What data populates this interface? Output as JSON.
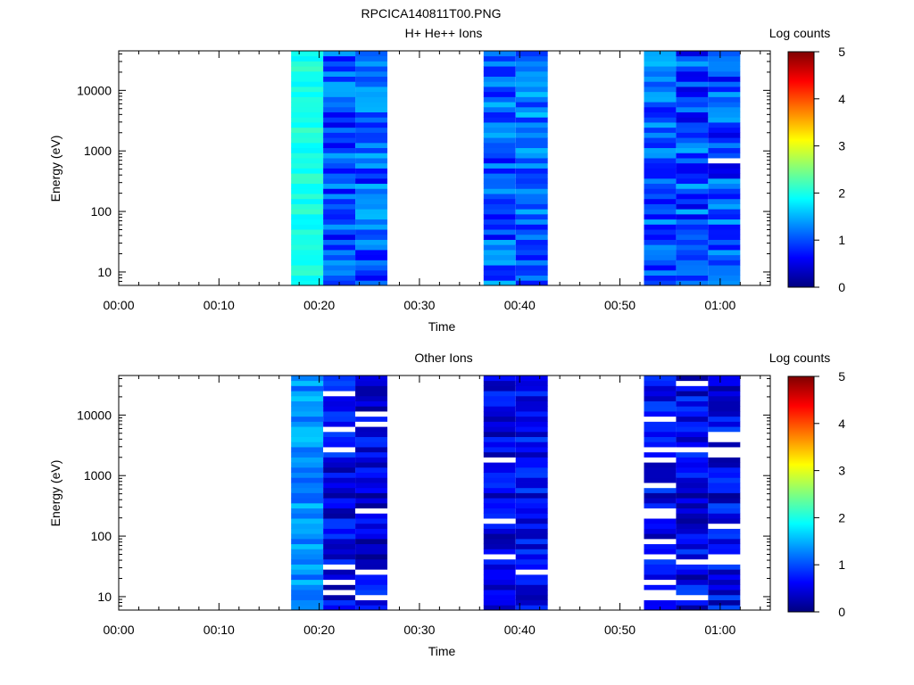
{
  "figure": {
    "title": "RPCICA140811T00.PNG"
  },
  "colorscale": {
    "stops": [
      "#00007f",
      "#0000ff",
      "#007fff",
      "#00ffff",
      "#7fff7f",
      "#ffff00",
      "#ff7f00",
      "#ff0000",
      "#7f0000"
    ],
    "label": "Log counts",
    "min": 0,
    "max": 5,
    "ticks": [
      0,
      1,
      2,
      3,
      4,
      5
    ],
    "tick_labels": [
      "0",
      "1",
      "2",
      "3",
      "4",
      "5"
    ]
  },
  "chart_data": [
    {
      "type": "heatmap",
      "title": "H+ He++ Ions",
      "xlabel": "Time",
      "ylabel": "Energy (eV)",
      "y_scale": "log",
      "xlim": [
        0,
        65
      ],
      "ylim": [
        6,
        45000
      ],
      "x_ticks": [
        0,
        10,
        20,
        30,
        40,
        50,
        60
      ],
      "x_tick_labels": [
        "00:00",
        "00:10",
        "00:20",
        "00:30",
        "00:40",
        "00:50",
        "01:00"
      ],
      "y_ticks": [
        10,
        100,
        1000,
        10000
      ],
      "y_tick_labels": [
        "10",
        "100",
        "1000",
        "10000"
      ],
      "colorbar_label": "Log counts",
      "time_bins": [
        {
          "start": 17.2,
          "end": 20.4,
          "base": 2.0,
          "var": 0.18,
          "seed": 11,
          "gap_prob": 0
        },
        {
          "start": 20.4,
          "end": 23.6,
          "base": 1.0,
          "var": 0.5,
          "seed": 23,
          "gap_prob": 0
        },
        {
          "start": 23.6,
          "end": 26.8,
          "base": 1.05,
          "var": 0.5,
          "seed": 37,
          "gap_prob": 0
        },
        {
          "start": 36.4,
          "end": 39.6,
          "base": 1.05,
          "var": 0.5,
          "seed": 41,
          "gap_prob": 0
        },
        {
          "start": 39.6,
          "end": 42.8,
          "base": 1.15,
          "var": 0.5,
          "seed": 53,
          "gap_prob": 0
        },
        {
          "start": 52.4,
          "end": 55.6,
          "base": 1.1,
          "var": 0.5,
          "seed": 67,
          "gap_prob": 0
        },
        {
          "start": 55.6,
          "end": 58.8,
          "base": 1.0,
          "var": 0.55,
          "seed": 71,
          "gap_prob": 0.01
        },
        {
          "start": 58.8,
          "end": 62.0,
          "base": 1.0,
          "var": 0.55,
          "seed": 83,
          "gap_prob": 0.02
        }
      ]
    },
    {
      "type": "heatmap",
      "title": "Other Ions",
      "xlabel": "Time",
      "ylabel": "Energy (eV)",
      "y_scale": "log",
      "xlim": [
        0,
        65
      ],
      "ylim": [
        6,
        45000
      ],
      "x_ticks": [
        0,
        10,
        20,
        30,
        40,
        50,
        60
      ],
      "x_tick_labels": [
        "00:00",
        "00:10",
        "00:20",
        "00:30",
        "00:40",
        "00:50",
        "01:00"
      ],
      "y_ticks": [
        10,
        100,
        1000,
        10000
      ],
      "y_tick_labels": [
        "10",
        "100",
        "1000",
        "10000"
      ],
      "colorbar_label": "Log counts",
      "time_bins": [
        {
          "start": 17.2,
          "end": 20.4,
          "base": 1.35,
          "var": 0.3,
          "seed": 101,
          "gap_prob": 0
        },
        {
          "start": 20.4,
          "end": 23.6,
          "base": 0.55,
          "var": 0.45,
          "seed": 113,
          "gap_prob": 0.1
        },
        {
          "start": 23.6,
          "end": 26.8,
          "base": 0.5,
          "var": 0.45,
          "seed": 127,
          "gap_prob": 0.08
        },
        {
          "start": 36.4,
          "end": 39.6,
          "base": 0.55,
          "var": 0.4,
          "seed": 131,
          "gap_prob": 0.07
        },
        {
          "start": 39.6,
          "end": 42.8,
          "base": 0.6,
          "var": 0.4,
          "seed": 149,
          "gap_prob": 0.06
        },
        {
          "start": 52.4,
          "end": 55.6,
          "base": 0.6,
          "var": 0.45,
          "seed": 157,
          "gap_prob": 0.1
        },
        {
          "start": 55.6,
          "end": 58.8,
          "base": 0.55,
          "var": 0.45,
          "seed": 163,
          "gap_prob": 0.09
        },
        {
          "start": 58.8,
          "end": 62.0,
          "base": 0.55,
          "var": 0.45,
          "seed": 173,
          "gap_prob": 0.11
        }
      ]
    }
  ]
}
